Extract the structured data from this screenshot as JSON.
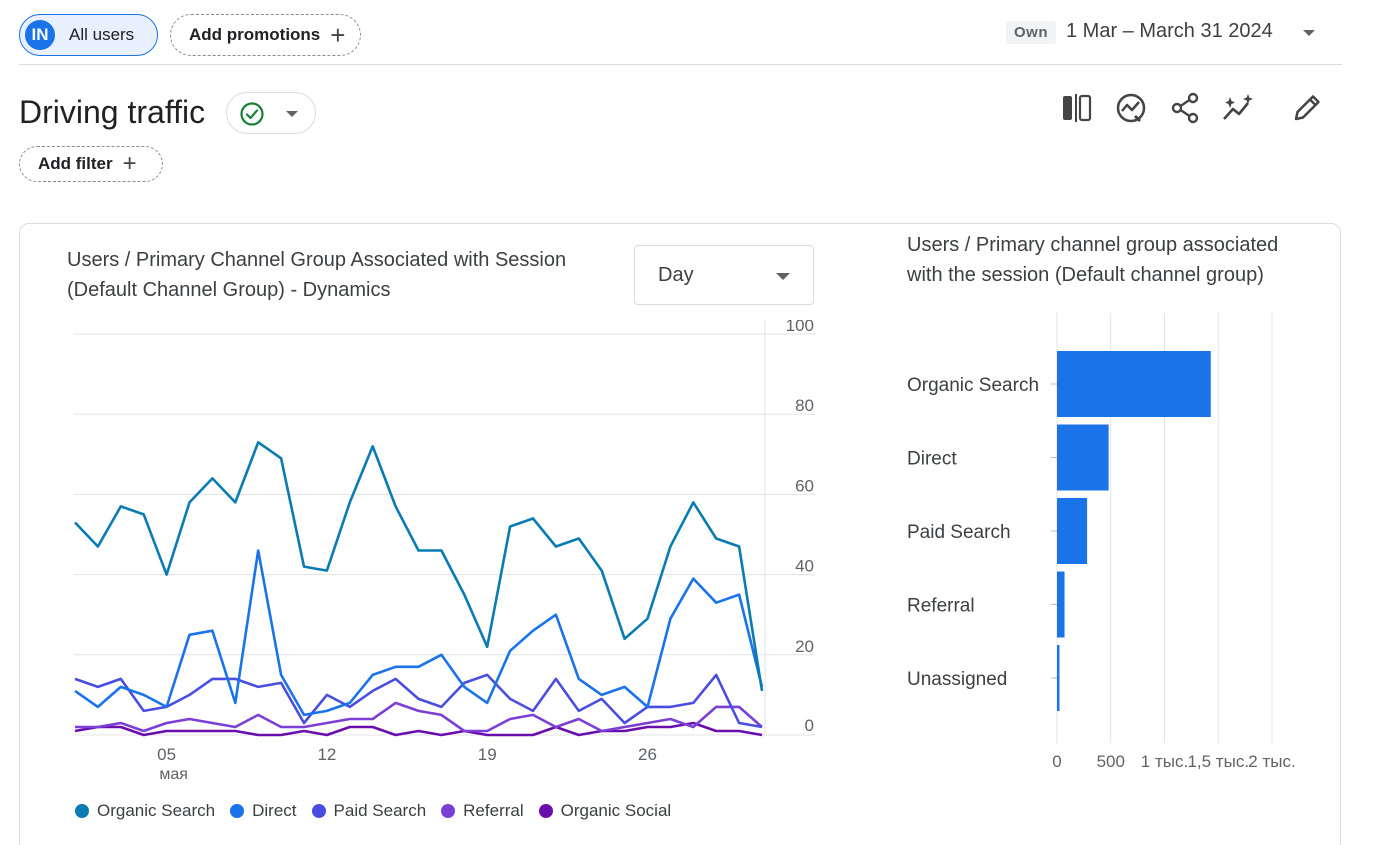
{
  "header": {
    "segment_avatar": "IN",
    "segment_label": "All users",
    "add_promotions_label": "Add promotions",
    "own_badge": "Own",
    "date_range": "1 Mar – March 31 2024"
  },
  "page": {
    "title": "Driving traffic",
    "add_filter_label": "Add filter"
  },
  "toolbar": {
    "icons": [
      "compare-icon",
      "insights-icon",
      "share-icon",
      "sparkle-icon",
      "edit-icon"
    ]
  },
  "line_card": {
    "title": "Users / Primary Channel Group Associated with Session (Default Channel Group) - Dynamics",
    "granularity": "Day"
  },
  "bar_card": {
    "title": "Users / Primary channel group associated with the session (Default channel group)"
  },
  "colors": {
    "organic_search": "#0b7bb3",
    "direct": "#1a73e8",
    "paid_search": "#4a4ee0",
    "referral": "#7b3fd6",
    "organic_social": "#6a0dad",
    "bar": "#1a73e8"
  },
  "chart_data": [
    {
      "type": "line",
      "title": "Users / Primary Channel Group Associated with Session (Default Channel Group) - Dynamics",
      "x": [
        1,
        2,
        3,
        4,
        5,
        6,
        7,
        8,
        9,
        10,
        11,
        12,
        13,
        14,
        15,
        16,
        17,
        18,
        19,
        20,
        21,
        22,
        23,
        24,
        25,
        26,
        27,
        28,
        29,
        30,
        31
      ],
      "x_ticks": [
        {
          "day": 5,
          "label": "05",
          "sublabel": "мая"
        },
        {
          "day": 12,
          "label": "12"
        },
        {
          "day": 19,
          "label": "19"
        },
        {
          "day": 26,
          "label": "26"
        }
      ],
      "y_ticks": [
        0,
        20,
        40,
        60,
        80,
        100
      ],
      "ylim": [
        0,
        100
      ],
      "y_axis_side": "right",
      "series": [
        {
          "name": "Organic Search",
          "color_key": "organic_search",
          "values": [
            53,
            47,
            57,
            55,
            40,
            58,
            64,
            58,
            73,
            69,
            42,
            41,
            58,
            72,
            57,
            46,
            46,
            35,
            22,
            52,
            54,
            47,
            49,
            41,
            24,
            29,
            47,
            58,
            49,
            47,
            11
          ]
        },
        {
          "name": "Direct",
          "color_key": "direct",
          "values": [
            11,
            7,
            12,
            10,
            7,
            25,
            26,
            8,
            46,
            15,
            5,
            6,
            8,
            15,
            17,
            17,
            20,
            12,
            8,
            21,
            26,
            30,
            14,
            10,
            12,
            7,
            29,
            39,
            33,
            35,
            12
          ]
        },
        {
          "name": "Paid Search",
          "color_key": "paid_search",
          "values": [
            14,
            12,
            14,
            6,
            7,
            10,
            14,
            14,
            12,
            13,
            3,
            10,
            7,
            11,
            14,
            9,
            7,
            13,
            15,
            9,
            6,
            14,
            6,
            9,
            3,
            7,
            7,
            8,
            15,
            3,
            2
          ]
        },
        {
          "name": "Referral",
          "color_key": "referral",
          "values": [
            2,
            2,
            3,
            1,
            3,
            4,
            3,
            2,
            5,
            2,
            2,
            3,
            4,
            4,
            8,
            6,
            5,
            1,
            1,
            4,
            5,
            2,
            4,
            1,
            2,
            3,
            4,
            2,
            7,
            7,
            2
          ]
        },
        {
          "name": "Organic Social",
          "color_key": "organic_social",
          "values": [
            1,
            2,
            2,
            0,
            1,
            1,
            1,
            1,
            0,
            0,
            1,
            0,
            2,
            2,
            0,
            1,
            0,
            1,
            0,
            0,
            0,
            2,
            0,
            1,
            1,
            2,
            2,
            3,
            1,
            1,
            0
          ]
        }
      ]
    },
    {
      "type": "bar",
      "orientation": "horizontal",
      "title": "Users / Primary channel group associated with the session (Default channel group)",
      "categories": [
        "Organic Search",
        "Direct",
        "Paid Search",
        "Referral",
        "Unassigned"
      ],
      "values": [
        1430,
        480,
        280,
        70,
        20
      ],
      "xlim": [
        0,
        2000
      ],
      "x_ticks": [
        0,
        500,
        1000,
        1500,
        2000
      ],
      "x_tick_labels": [
        "0",
        "500",
        "1 тыс.",
        "1,5 тыс.",
        "2 тыс."
      ]
    }
  ]
}
